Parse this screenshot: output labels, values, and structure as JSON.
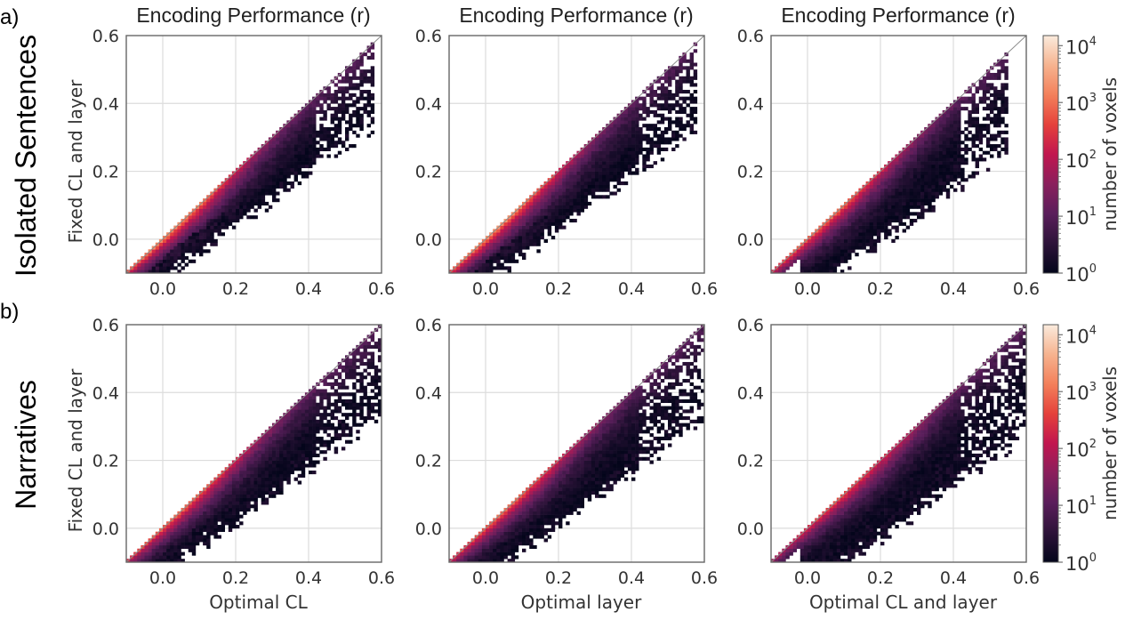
{
  "figure": {
    "panel_labels": [
      "a)",
      "b)"
    ],
    "row_labels": [
      "Isolated Sentences",
      "Narratives"
    ],
    "column_titles": [
      "Encoding Performance (r)",
      "Encoding Performance (r)",
      "Encoding Performance (r)"
    ],
    "colorbar": {
      "label": "number of voxels",
      "scale": "log",
      "ticks": [
        "10",
        "10",
        "10",
        "10",
        "10"
      ],
      "exponents": [
        "0",
        "1",
        "2",
        "3",
        "4"
      ],
      "range": [
        1,
        15000
      ],
      "colormap": "rocket",
      "colormap_stops": [
        "#03051a",
        "#2d1339",
        "#5a1e5b",
        "#8a1f5c",
        "#c1164f",
        "#e5413b",
        "#f3805b",
        "#f6b38f",
        "#faebdd"
      ]
    }
  },
  "chart_data": [
    {
      "type": "heatmap",
      "row": "Isolated Sentences",
      "title": "Encoding Performance (r)",
      "xlabel": "",
      "ylabel": "Fixed CL and layer",
      "xlim": [
        -0.1,
        0.6
      ],
      "ylim": [
        -0.1,
        0.6
      ],
      "xticks": [
        "0.0",
        "0.2",
        "0.4",
        "0.6"
      ],
      "yticks": [
        "0.0",
        "0.2",
        "0.4",
        "0.6"
      ],
      "grid": true,
      "identity_line": true,
      "density": {
        "peak_x": 0.03,
        "peak_count": 3000,
        "upper_extent_x": 0.58,
        "spread": 0.11,
        "x_floor": -0.1
      }
    },
    {
      "type": "heatmap",
      "row": "Isolated Sentences",
      "title": "Encoding Performance (r)",
      "xlabel": "",
      "ylabel": "",
      "xlim": [
        -0.1,
        0.6
      ],
      "ylim": [
        -0.1,
        0.6
      ],
      "xticks": [
        "0.0",
        "0.2",
        "0.4",
        "0.6"
      ],
      "yticks": [
        "0.0",
        "0.2",
        "0.4",
        "0.6"
      ],
      "grid": true,
      "identity_line": true,
      "density": {
        "peak_x": 0.03,
        "peak_count": 3000,
        "upper_extent_x": 0.58,
        "spread": 0.12,
        "x_floor": -0.1
      }
    },
    {
      "type": "heatmap",
      "row": "Isolated Sentences",
      "title": "Encoding Performance (r)",
      "xlabel": "",
      "ylabel": "",
      "xlim": [
        -0.1,
        0.6
      ],
      "ylim": [
        -0.1,
        0.6
      ],
      "xticks": [
        "0.0",
        "0.2",
        "0.4",
        "0.6"
      ],
      "yticks": [
        "0.0",
        "0.2",
        "0.4",
        "0.6"
      ],
      "grid": true,
      "identity_line": true,
      "density": {
        "peak_x": 0.05,
        "peak_count": 1500,
        "upper_extent_x": 0.55,
        "spread": 0.16,
        "x_floor": -0.02
      }
    },
    {
      "type": "heatmap",
      "row": "Narratives",
      "title": "",
      "xlabel": "Optimal CL",
      "ylabel": "Fixed CL and layer",
      "xlim": [
        -0.1,
        0.6
      ],
      "ylim": [
        -0.1,
        0.6
      ],
      "xticks": [
        "0.0",
        "0.2",
        "0.4",
        "0.6"
      ],
      "yticks": [
        "0.0",
        "0.2",
        "0.4",
        "0.6"
      ],
      "grid": true,
      "identity_line": true,
      "density": {
        "peak_x": 0.05,
        "peak_count": 1200,
        "upper_extent_x": 0.6,
        "spread": 0.13,
        "x_floor": -0.1
      }
    },
    {
      "type": "heatmap",
      "row": "Narratives",
      "title": "",
      "xlabel": "Optimal layer",
      "ylabel": "",
      "xlim": [
        -0.1,
        0.6
      ],
      "ylim": [
        -0.1,
        0.6
      ],
      "xticks": [
        "0.0",
        "0.2",
        "0.4",
        "0.6"
      ],
      "yticks": [
        "0.0",
        "0.2",
        "0.4",
        "0.6"
      ],
      "grid": true,
      "identity_line": true,
      "density": {
        "peak_x": 0.05,
        "peak_count": 1200,
        "upper_extent_x": 0.6,
        "spread": 0.14,
        "x_floor": -0.1
      }
    },
    {
      "type": "heatmap",
      "row": "Narratives",
      "title": "",
      "xlabel": "Optimal CL and layer",
      "ylabel": "",
      "xlim": [
        -0.1,
        0.6
      ],
      "ylim": [
        -0.1,
        0.6
      ],
      "xticks": [
        "0.0",
        "0.2",
        "0.4",
        "0.6"
      ],
      "yticks": [
        "0.0",
        "0.2",
        "0.4",
        "0.6"
      ],
      "grid": true,
      "identity_line": true,
      "density": {
        "peak_x": 0.1,
        "peak_count": 600,
        "upper_extent_x": 0.6,
        "spread": 0.18,
        "x_floor": -0.02
      }
    }
  ]
}
